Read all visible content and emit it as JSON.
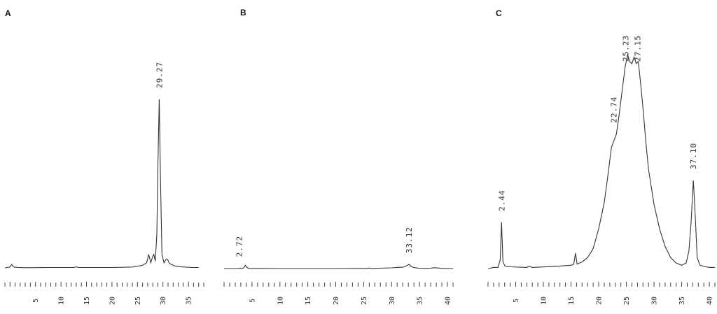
{
  "chart_data": [
    {
      "type": "line",
      "panel": "A",
      "xlim": [
        -1,
        38
      ],
      "ylim": [
        0,
        100
      ],
      "tick_labels": [
        5,
        10,
        15,
        20,
        25,
        30,
        35
      ],
      "peaks": [
        {
          "x": 29.27,
          "label": "29.27"
        }
      ],
      "series": [
        {
          "x": [
            -1,
            0,
            0.3,
            0.8,
            1.5,
            3,
            8,
            12.5,
            13,
            13.5,
            20,
            24,
            26,
            26.8,
            27.2,
            27.6,
            27.9,
            28.2,
            28.5,
            28.8,
            29.0,
            29.27,
            29.5,
            29.8,
            30.2,
            30.6,
            30.9,
            31.2,
            31.6,
            32.5,
            34,
            36,
            37
          ],
          "y": [
            0,
            0.5,
            2,
            0.5,
            0.2,
            0.1,
            0.2,
            0.2,
            0.6,
            0.2,
            0.2,
            0.5,
            1.5,
            3,
            8,
            3,
            6,
            8,
            4,
            20,
            60,
            100,
            55,
            8,
            3,
            5,
            5,
            3,
            2,
            1,
            0.5,
            0.2,
            0.2
          ]
        }
      ]
    },
    {
      "type": "line",
      "panel": "B",
      "xlim": [
        0,
        41
      ],
      "ylim": [
        0,
        100
      ],
      "tick_labels": [
        5,
        10,
        15,
        20,
        25,
        30,
        35,
        40
      ],
      "peaks": [
        {
          "x": 2.72,
          "label": "2.72"
        },
        {
          "x": 33.12,
          "label": "33.12"
        }
      ],
      "series": [
        {
          "x": [
            0,
            2,
            2.6,
            2.9,
            3.2,
            3.5,
            3.8,
            4.1,
            4.4,
            5,
            10,
            20,
            25.5,
            26,
            26.5,
            27,
            30,
            31,
            32,
            32.5,
            32.8,
            33.12,
            33.4,
            33.8,
            34.2,
            34.8,
            36,
            37,
            37.6,
            38.2,
            39,
            40,
            41
          ],
          "y": [
            0,
            0,
            0.3,
            1.5,
            0.5,
            2,
            12,
            4,
            0.5,
            0.2,
            0.1,
            0.1,
            0.2,
            1.8,
            0.5,
            0.8,
            2.5,
            4,
            5,
            8,
            12,
            15,
            9,
            5,
            3,
            1.5,
            1,
            1.5,
            3,
            2,
            0.8,
            0.2,
            0.1
          ]
        }
      ]
    },
    {
      "type": "line",
      "panel": "C",
      "xlim": [
        0,
        41
      ],
      "ylim": [
        0,
        100
      ],
      "tick_labels": [
        5,
        10,
        15,
        20,
        25,
        30,
        35,
        40
      ],
      "peaks": [
        {
          "x": 2.44,
          "label": "2.44"
        },
        {
          "x": 22.74,
          "label": "22.74"
        },
        {
          "x": 25.23,
          "label": "25.23"
        },
        {
          "x": 27.15,
          "label": "27.15"
        },
        {
          "x": 37.1,
          "label": "37.10"
        }
      ],
      "series": [
        {
          "x": [
            0,
            1,
            1.8,
            2.2,
            2.44,
            2.7,
            3.1,
            4,
            7,
            7.5,
            8,
            12,
            15,
            15.5,
            15.8,
            16.1,
            16.5,
            17,
            18,
            19,
            20,
            21,
            21.7,
            22.3,
            22.74,
            23.2,
            23.7,
            24.3,
            24.8,
            25.23,
            25.6,
            26.0,
            26.4,
            26.8,
            27.15,
            27.5,
            28,
            28.5,
            29,
            30,
            31,
            32,
            33,
            34,
            35,
            35.8,
            36.3,
            36.7,
            37.1,
            37.4,
            37.8,
            38.3,
            39,
            40,
            41
          ],
          "y": [
            0,
            0.5,
            0.5,
            4,
            21,
            3,
            1,
            0.8,
            0.5,
            1,
            0.5,
            1,
            1.5,
            2,
            7,
            2,
            2.5,
            3,
            5,
            9,
            18,
            30,
            43,
            55,
            58,
            61,
            70,
            82,
            92,
            97,
            94,
            93,
            96,
            93,
            94,
            86,
            73,
            58,
            45,
            29,
            18,
            10,
            5,
            2.5,
            1.5,
            2.5,
            8,
            21,
            40,
            26,
            5,
            1.5,
            1,
            0.5,
            0.5
          ]
        }
      ]
    }
  ],
  "labels": {
    "panel_A": "A",
    "panel_B": "B",
    "panel_C": "C",
    "A_peak_1": "29.27",
    "B_peak_1": "2.72",
    "B_peak_2": "33.12",
    "C_peak_1": "2.44",
    "C_peak_2": "22.74",
    "C_peak_3": "25.23",
    "C_peak_4": "27.15",
    "C_peak_5": "37.10"
  }
}
